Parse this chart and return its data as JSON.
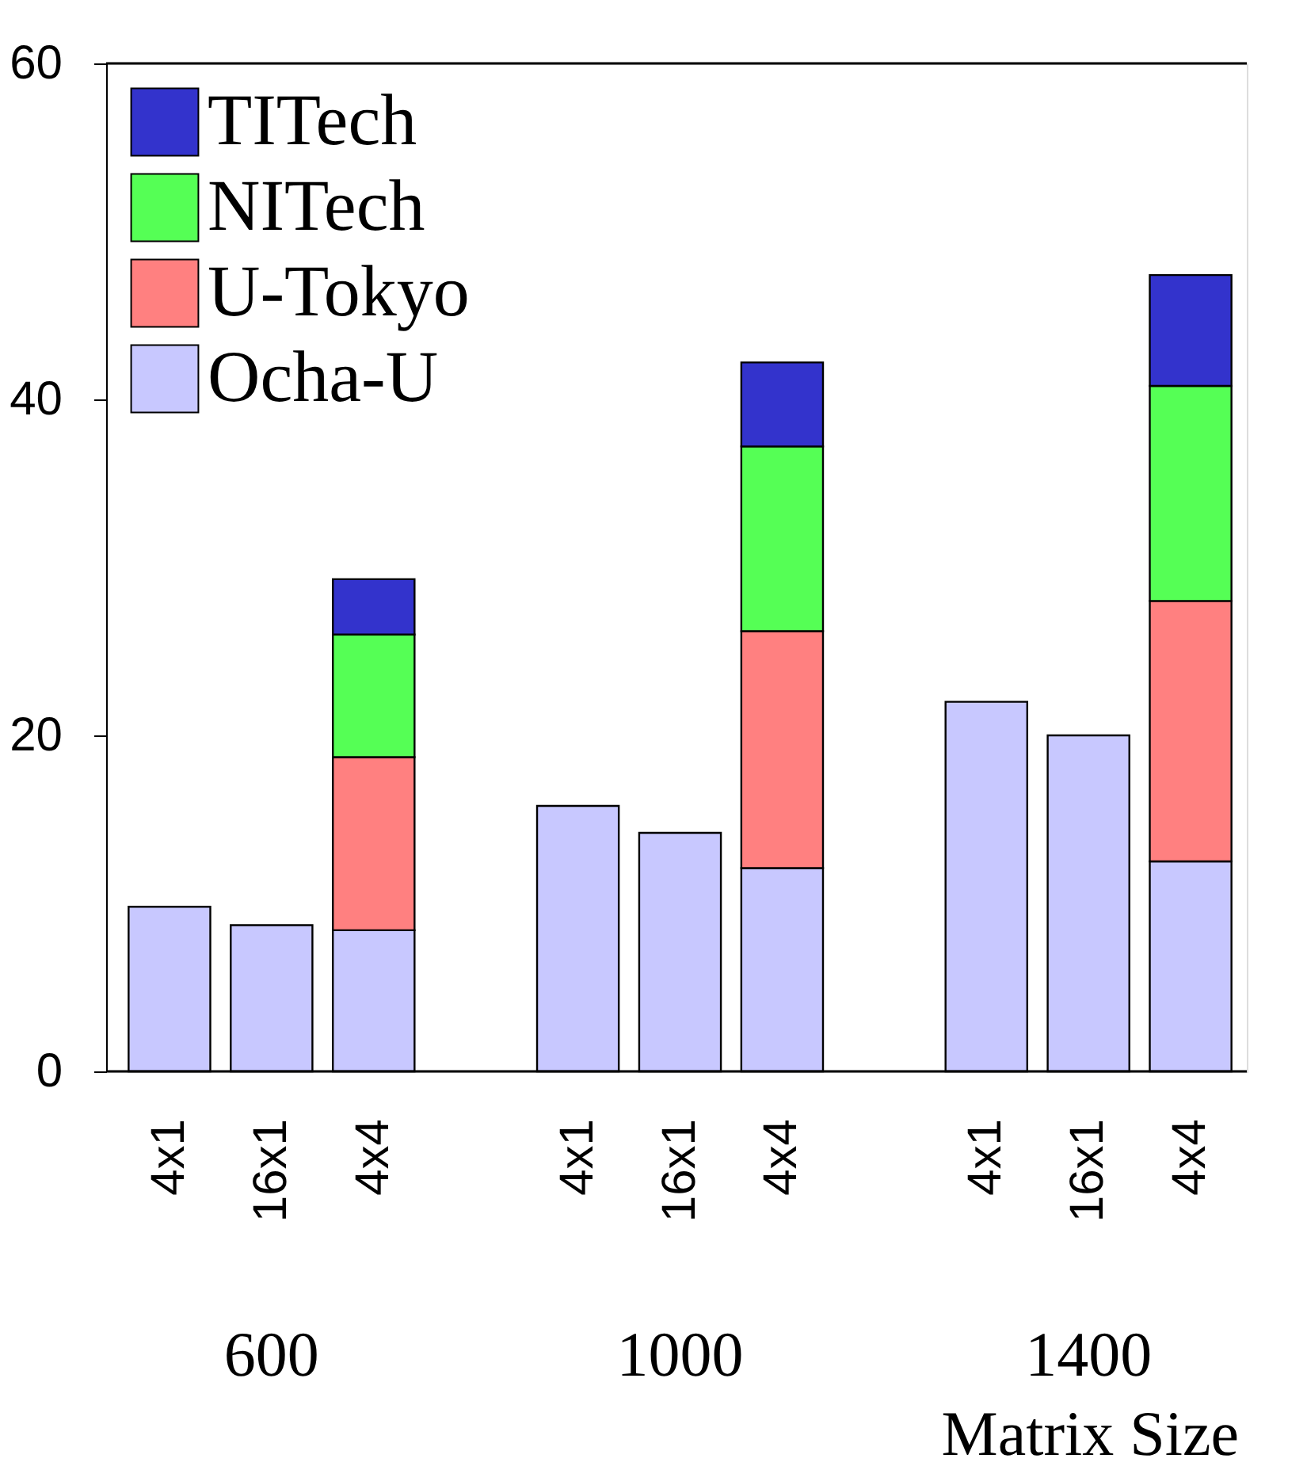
{
  "chart_data": {
    "type": "bar",
    "stacked": true,
    "xlabel": "Matrix Size",
    "categories": [
      "4x1",
      "16x1",
      "4x4",
      "4x1",
      "16x1",
      "4x4",
      "4x1",
      "16x1",
      "4x4"
    ],
    "annotations": [
      "600",
      "1000",
      "1400"
    ],
    "series": [
      {
        "name": "Ocha-U",
        "color": "#c8c8ff",
        "values": [
          9.8,
          8.7,
          8.4,
          15.8,
          14.2,
          12.1,
          22.0,
          20.0,
          12.5
        ]
      },
      {
        "name": "U-Tokyo",
        "color": "#ff8080",
        "values": [
          null,
          null,
          10.3,
          null,
          null,
          14.1,
          null,
          null,
          15.5
        ]
      },
      {
        "name": "NITech",
        "color": "#55ff55",
        "values": [
          null,
          null,
          7.3,
          null,
          null,
          11.0,
          null,
          null,
          12.8
        ]
      },
      {
        "name": "TITech",
        "color": "#3333cc",
        "values": [
          null,
          null,
          3.3,
          null,
          null,
          5.0,
          null,
          null,
          6.6
        ]
      }
    ],
    "ylim": [
      0,
      60
    ],
    "yticks": [
      0,
      20,
      40,
      60
    ],
    "grid": false,
    "legend": "top left"
  }
}
